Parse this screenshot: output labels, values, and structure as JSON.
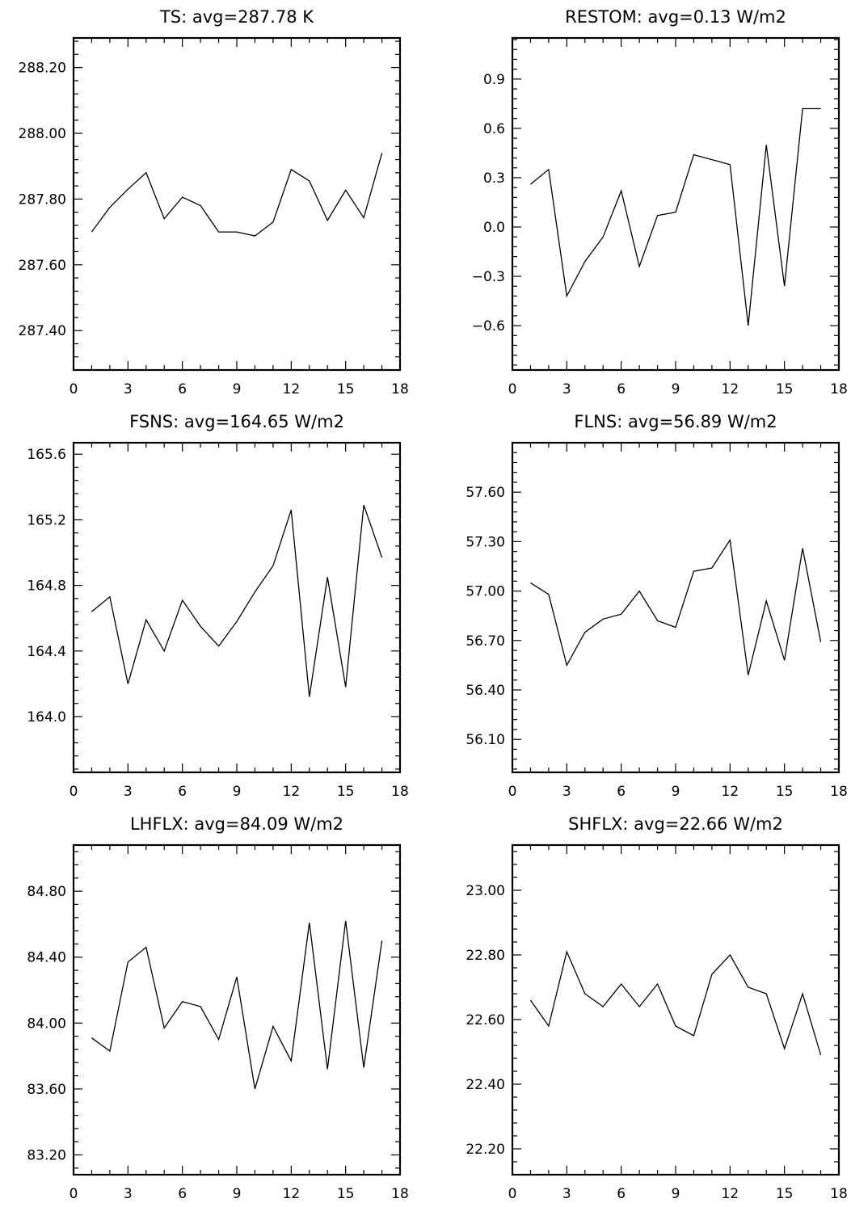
{
  "chart_data": [
    {
      "type": "line",
      "title": "TS: avg=287.78 K",
      "xlim": [
        0,
        18
      ],
      "xticks": [
        0,
        3,
        6,
        9,
        12,
        15,
        18
      ],
      "ylim": [
        287.28,
        288.29
      ],
      "yticks": [
        287.4,
        287.6,
        287.8,
        288.0,
        288.2
      ],
      "ytick_labels": [
        "287.40",
        "287.60",
        "287.80",
        "288.00",
        "288.20"
      ],
      "x": [
        1,
        2,
        3,
        4,
        5,
        6,
        7,
        8,
        9,
        10,
        11,
        12,
        13,
        14,
        15,
        16,
        17
      ],
      "values": [
        287.7,
        287.775,
        287.83,
        287.88,
        287.74,
        287.806,
        287.78,
        287.7,
        287.7,
        287.688,
        287.73,
        287.89,
        287.855,
        287.735,
        287.827,
        287.743,
        287.94
      ]
    },
    {
      "type": "line",
      "title": "RESTOM: avg=0.13 W/m2",
      "xlim": [
        0,
        18
      ],
      "xticks": [
        0,
        3,
        6,
        9,
        12,
        15,
        18
      ],
      "ylim": [
        -0.87,
        1.15
      ],
      "yticks": [
        -0.6,
        -0.3,
        0.0,
        0.3,
        0.6,
        0.9
      ],
      "ytick_labels": [
        "−0.6",
        "−0.3",
        "0.0",
        "0.3",
        "0.6",
        "0.9"
      ],
      "x": [
        1,
        2,
        3,
        4,
        5,
        6,
        7,
        8,
        9,
        10,
        11,
        12,
        13,
        14,
        15,
        16,
        17
      ],
      "values": [
        0.26,
        0.35,
        -0.42,
        -0.21,
        -0.06,
        0.22,
        -0.24,
        0.07,
        0.09,
        0.44,
        0.41,
        0.38,
        -0.6,
        0.5,
        -0.36,
        0.72,
        0.72
      ]
    },
    {
      "type": "line",
      "title": "FSNS: avg=164.65 W/m2",
      "xlim": [
        0,
        18
      ],
      "xticks": [
        0,
        3,
        6,
        9,
        12,
        15,
        18
      ],
      "ylim": [
        163.66,
        165.67
      ],
      "yticks": [
        164.0,
        164.4,
        164.8,
        165.2,
        165.6
      ],
      "ytick_labels": [
        "164.0",
        "164.4",
        "164.8",
        "165.2",
        "165.6"
      ],
      "x": [
        1,
        2,
        3,
        4,
        5,
        6,
        7,
        8,
        9,
        10,
        11,
        12,
        13,
        14,
        15,
        16,
        17
      ],
      "values": [
        164.64,
        164.73,
        164.2,
        164.59,
        164.4,
        164.71,
        164.55,
        164.43,
        164.58,
        164.76,
        164.92,
        165.26,
        164.12,
        164.85,
        164.18,
        165.29,
        164.97
      ]
    },
    {
      "type": "line",
      "title": "FLNS: avg=56.89 W/m2",
      "xlim": [
        0,
        18
      ],
      "xticks": [
        0,
        3,
        6,
        9,
        12,
        15,
        18
      ],
      "ylim": [
        55.9,
        57.9
      ],
      "yticks": [
        56.1,
        56.4,
        56.7,
        57.0,
        57.3,
        57.6
      ],
      "ytick_labels": [
        "56.10",
        "56.40",
        "56.70",
        "57.00",
        "57.30",
        "57.60"
      ],
      "x": [
        1,
        2,
        3,
        4,
        5,
        6,
        7,
        8,
        9,
        10,
        11,
        12,
        13,
        14,
        15,
        16,
        17
      ],
      "values": [
        57.05,
        56.98,
        56.55,
        56.75,
        56.83,
        56.86,
        57.0,
        56.82,
        56.78,
        57.12,
        57.14,
        57.31,
        56.49,
        56.94,
        56.58,
        57.26,
        56.69
      ]
    },
    {
      "type": "line",
      "title": "LHFLX: avg=84.09 W/m2",
      "xlim": [
        0,
        18
      ],
      "xticks": [
        0,
        3,
        6,
        9,
        12,
        15,
        18
      ],
      "ylim": [
        83.08,
        85.08
      ],
      "yticks": [
        83.2,
        83.6,
        84.0,
        84.4,
        84.8
      ],
      "ytick_labels": [
        "83.20",
        "83.60",
        "84.00",
        "84.40",
        "84.80"
      ],
      "x": [
        1,
        2,
        3,
        4,
        5,
        6,
        7,
        8,
        9,
        10,
        11,
        12,
        13,
        14,
        15,
        16,
        17
      ],
      "values": [
        83.91,
        83.83,
        84.37,
        84.46,
        83.97,
        84.13,
        84.1,
        83.9,
        84.28,
        83.6,
        83.98,
        83.77,
        84.61,
        83.72,
        84.62,
        83.73,
        84.5
      ]
    },
    {
      "type": "line",
      "title": "SHFLX: avg=22.66 W/m2",
      "xlim": [
        0,
        18
      ],
      "xticks": [
        0,
        3,
        6,
        9,
        12,
        15,
        18
      ],
      "ylim": [
        22.12,
        23.14
      ],
      "yticks": [
        22.2,
        22.4,
        22.6,
        22.8,
        23.0
      ],
      "ytick_labels": [
        "22.20",
        "22.40",
        "22.60",
        "22.80",
        "23.00"
      ],
      "x": [
        1,
        2,
        3,
        4,
        5,
        6,
        7,
        8,
        9,
        10,
        11,
        12,
        13,
        14,
        15,
        16,
        17
      ],
      "values": [
        22.66,
        22.58,
        22.81,
        22.68,
        22.64,
        22.71,
        22.64,
        22.71,
        22.58,
        22.55,
        22.74,
        22.8,
        22.7,
        22.68,
        22.51,
        22.68,
        22.49
      ]
    }
  ]
}
